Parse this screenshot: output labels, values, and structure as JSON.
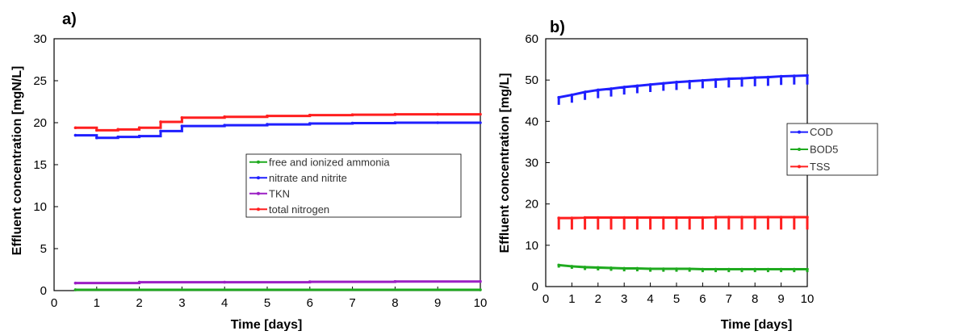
{
  "chart_data": [
    {
      "type": "line",
      "panel_label": "a)",
      "xlabel": "Time [days]",
      "ylabel": "Effluent concentration  [mgN/L]",
      "xlim": [
        0,
        10
      ],
      "ylim": [
        0,
        30
      ],
      "xticks": [
        0,
        1,
        2,
        3,
        4,
        5,
        6,
        7,
        8,
        9,
        10
      ],
      "yticks": [
        0,
        5,
        10,
        15,
        20,
        25,
        30
      ],
      "grid": false,
      "legend_position": "center-right",
      "series": [
        {
          "name": "free and ionized ammonia",
          "color": "#1faa1f",
          "x": [
            0.5,
            10
          ],
          "y": [
            0.1,
            0.1
          ]
        },
        {
          "name": "nitrate and nitrite",
          "color": "#1f1fff",
          "x": [
            0.5,
            1,
            1.5,
            2,
            2.5,
            3,
            4,
            5,
            6,
            7,
            8,
            9,
            10
          ],
          "y": [
            18.5,
            18.2,
            18.3,
            18.4,
            19.0,
            19.6,
            19.7,
            19.8,
            19.9,
            19.95,
            20.0,
            20.0,
            20.0
          ]
        },
        {
          "name": "TKN",
          "color": "#9b1fc4",
          "x": [
            0.5,
            2,
            4,
            6,
            8,
            10
          ],
          "y": [
            0.9,
            1.0,
            1.0,
            1.05,
            1.08,
            1.1
          ]
        },
        {
          "name": "total nitrogen",
          "color": "#ff1f1f",
          "x": [
            0.5,
            1,
            1.5,
            2,
            2.5,
            3,
            4,
            5,
            6,
            7,
            8,
            9,
            10
          ],
          "y": [
            19.4,
            19.1,
            19.2,
            19.4,
            20.1,
            20.6,
            20.7,
            20.8,
            20.9,
            20.95,
            21.0,
            21.0,
            21.0
          ]
        }
      ]
    },
    {
      "type": "line",
      "panel_label": "b)",
      "xlabel": "Time [days]",
      "ylabel": "Effluent concentration  [mg/L]",
      "xlim": [
        0,
        10
      ],
      "ylim": [
        0,
        60
      ],
      "xticks": [
        0,
        1,
        2,
        3,
        4,
        5,
        6,
        7,
        8,
        9,
        10
      ],
      "yticks": [
        0,
        10,
        20,
        30,
        40,
        50,
        60
      ],
      "grid": false,
      "legend_position": "center-right",
      "spike_interval_days": 0.5,
      "series": [
        {
          "name": "COD",
          "color": "#1f1fff",
          "x": [
            0.5,
            1,
            1.5,
            2,
            2.5,
            3,
            3.5,
            4,
            4.5,
            5,
            5.5,
            6,
            6.5,
            7,
            7.5,
            8,
            8.5,
            9,
            9.5,
            10
          ],
          "y": [
            45.8,
            46.4,
            47.1,
            47.6,
            47.9,
            48.3,
            48.6,
            48.9,
            49.2,
            49.5,
            49.7,
            49.9,
            50.1,
            50.3,
            50.4,
            50.6,
            50.7,
            50.9,
            51.0,
            51.1
          ],
          "spike_min": [
            44.0,
            44.5,
            45.2,
            45.6,
            46.0,
            46.5,
            46.8,
            47.1,
            47.4,
            47.6,
            47.8,
            48.0,
            48.1,
            48.2,
            48.4,
            48.5,
            48.6,
            48.8,
            48.9,
            48.9
          ]
        },
        {
          "name": "BOD5",
          "color": "#1faa1f",
          "x": [
            0.5,
            1,
            1.5,
            2,
            2.5,
            3,
            3.5,
            4,
            4.5,
            5,
            5.5,
            6,
            6.5,
            7,
            7.5,
            8,
            8.5,
            9,
            9.5,
            10
          ],
          "y": [
            5.2,
            4.9,
            4.7,
            4.6,
            4.5,
            4.4,
            4.4,
            4.3,
            4.3,
            4.3,
            4.3,
            4.2,
            4.2,
            4.2,
            4.2,
            4.2,
            4.2,
            4.2,
            4.2,
            4.2
          ],
          "spike_min": [
            4.6,
            4.3,
            4.0,
            3.9,
            3.8,
            3.7,
            3.7,
            3.6,
            3.6,
            3.6,
            3.6,
            3.5,
            3.5,
            3.5,
            3.5,
            3.5,
            3.5,
            3.5,
            3.5,
            3.5
          ]
        },
        {
          "name": "TSS",
          "color": "#ff1f1f",
          "x": [
            0.5,
            1,
            1.5,
            2,
            2.5,
            3,
            3.5,
            4,
            4.5,
            5,
            5.5,
            6,
            6.5,
            7,
            7.5,
            8,
            8.5,
            9,
            9.5,
            10
          ],
          "y": [
            16.6,
            16.6,
            16.7,
            16.7,
            16.7,
            16.7,
            16.7,
            16.7,
            16.7,
            16.7,
            16.7,
            16.7,
            16.8,
            16.8,
            16.8,
            16.8,
            16.8,
            16.8,
            16.8,
            16.8
          ],
          "spike_min": [
            13.8,
            13.8,
            13.8,
            13.8,
            13.8,
            13.8,
            13.8,
            13.8,
            13.8,
            13.8,
            13.8,
            13.8,
            13.8,
            13.8,
            13.8,
            13.8,
            13.8,
            13.8,
            13.8,
            13.8
          ]
        }
      ]
    }
  ]
}
